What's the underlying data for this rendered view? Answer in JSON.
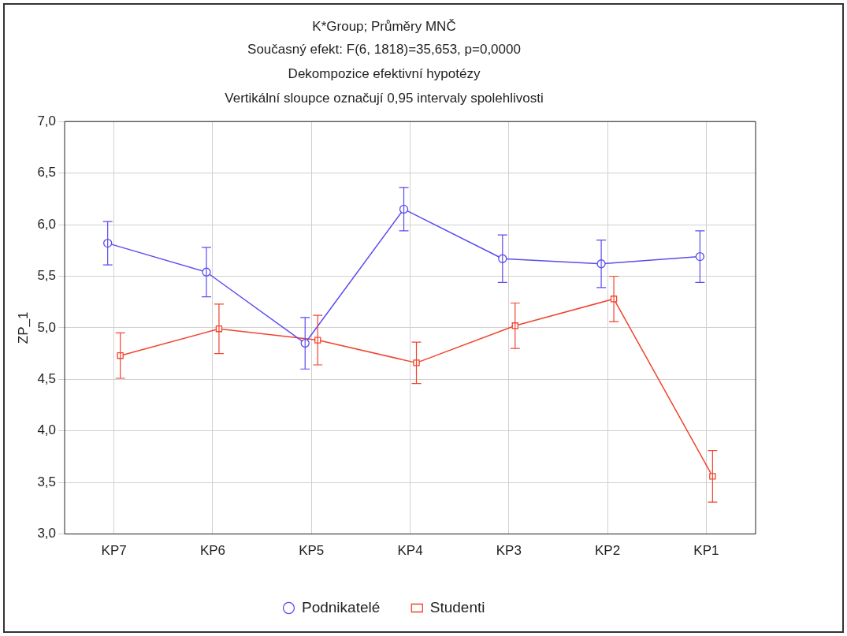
{
  "chart_data": {
    "type": "line",
    "title": "K*Group; Průměry MNČ",
    "subtitle": "Současný efekt: F(6, 1818)=35,653, p=0,0000\nDekompozice efektivní hypotézy\nVertikální sloupce označují 0,95 intervaly spolehlivosti",
    "ylabel": "ZP_1",
    "categories": [
      "KP7",
      "KP6",
      "KP5",
      "KP4",
      "KP3",
      "KP2",
      "KP1"
    ],
    "series": [
      {
        "name": "Podnikatelé",
        "color": "#5b4cf0",
        "marker": "circle",
        "values": [
          5.82,
          5.54,
          4.85,
          6.15,
          5.67,
          5.62,
          5.69
        ],
        "errors": [
          0.21,
          0.24,
          0.25,
          0.21,
          0.23,
          0.23,
          0.25
        ]
      },
      {
        "name": "Studenti",
        "color": "#f0442e",
        "marker": "square",
        "values": [
          4.73,
          4.99,
          4.88,
          4.66,
          5.02,
          5.28,
          3.56
        ],
        "errors": [
          0.22,
          0.24,
          0.24,
          0.2,
          0.22,
          0.22,
          0.25
        ]
      }
    ],
    "ylim": [
      3.0,
      7.0
    ],
    "yticks": [
      {
        "value": 3.0,
        "label": "3,0"
      },
      {
        "value": 3.5,
        "label": "3,5"
      },
      {
        "value": 4.0,
        "label": "4,0"
      },
      {
        "value": 4.5,
        "label": "4,5"
      },
      {
        "value": 5.0,
        "label": "5,0"
      },
      {
        "value": 5.5,
        "label": "5,5"
      },
      {
        "value": 6.0,
        "label": "6,0"
      },
      {
        "value": 6.5,
        "label": "6,5"
      },
      {
        "value": 7.0,
        "label": "7,0"
      }
    ],
    "grid": true,
    "legend": "bottom",
    "line_style": "solid"
  }
}
